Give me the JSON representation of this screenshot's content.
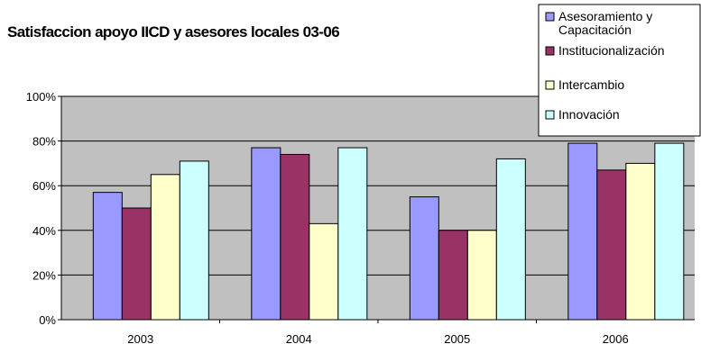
{
  "chart_data": {
    "type": "bar",
    "title": "Satisfaccion apoyo IICD y asesores locales 03-06",
    "categories": [
      "2003",
      "2004",
      "2005",
      "2006"
    ],
    "series": [
      {
        "name": "Asesoramiento y Capacitación",
        "color": "#9999ff",
        "values": [
          0.57,
          0.77,
          0.55,
          0.79
        ]
      },
      {
        "name": "Institucionalización",
        "color": "#993366",
        "values": [
          0.5,
          0.74,
          0.4,
          0.67
        ]
      },
      {
        "name": "Intercambio",
        "color": "#ffffcc",
        "values": [
          0.65,
          0.43,
          0.4,
          0.7
        ]
      },
      {
        "name": "Innovación",
        "color": "#ccffff",
        "values": [
          0.71,
          0.77,
          0.72,
          0.79
        ]
      }
    ],
    "ylim": [
      0,
      1
    ],
    "yticks": [
      "0%",
      "20%",
      "40%",
      "60%",
      "80%",
      "100%"
    ],
    "xlabel": "",
    "ylabel": "",
    "plot_background": "#c0c0c0",
    "grid": true,
    "legend_position": "top-right"
  }
}
